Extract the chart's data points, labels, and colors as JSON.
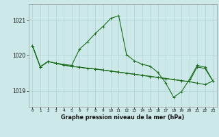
{
  "title": "Graphe pression niveau de la mer (hPa)",
  "x_labels": [
    "0",
    "1",
    "2",
    "3",
    "4",
    "5",
    "6",
    "7",
    "8",
    "9",
    "10",
    "11",
    "12",
    "13",
    "14",
    "15",
    "16",
    "17",
    "18",
    "19",
    "20",
    "21",
    "22",
    "23"
  ],
  "ylim": [
    1018.55,
    1021.45
  ],
  "yticks": [
    1019,
    1020,
    1021
  ],
  "background_color": "#cce8e8",
  "grid_color": "#aad4d4",
  "line_color": "#1a6b1a",
  "line1": [
    1020.28,
    1019.68,
    1019.83,
    1019.78,
    1019.75,
    1019.72,
    1020.18,
    1020.38,
    1020.62,
    1020.82,
    1021.05,
    1021.12,
    1020.02,
    1019.85,
    1019.75,
    1019.7,
    1019.52,
    1019.22,
    1018.82,
    1018.98,
    1019.32,
    1019.72,
    1019.67,
    1019.28
  ],
  "line2": [
    1020.28,
    1019.68,
    1019.83,
    1019.78,
    1019.73,
    1019.69,
    1019.67,
    1019.64,
    1019.62,
    1019.59,
    1019.56,
    1019.53,
    1019.5,
    1019.47,
    1019.44,
    1019.41,
    1019.38,
    1019.35,
    1019.32,
    1019.29,
    1019.26,
    1019.68,
    1019.63,
    1019.28
  ],
  "line3": [
    1020.28,
    1019.68,
    1019.83,
    1019.78,
    1019.73,
    1019.69,
    1019.67,
    1019.64,
    1019.62,
    1019.59,
    1019.56,
    1019.53,
    1019.5,
    1019.47,
    1019.44,
    1019.41,
    1019.38,
    1019.35,
    1019.32,
    1019.29,
    1019.26,
    1019.22,
    1019.18,
    1019.28
  ]
}
